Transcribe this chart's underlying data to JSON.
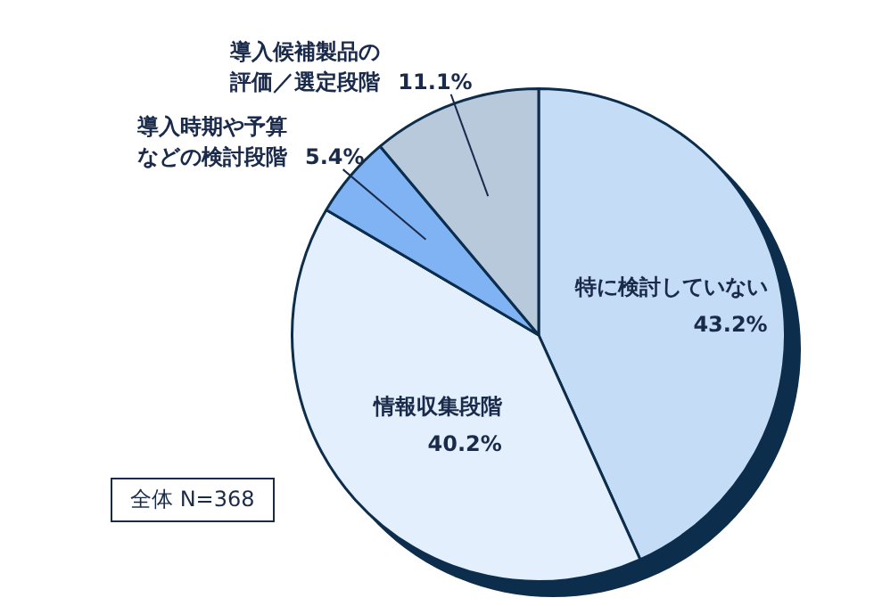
{
  "chart_data": {
    "type": "pie",
    "categories": [
      "特に検討していない",
      "情報収集段階",
      "導入時期や予算などの検討段階",
      "導入候補製品の評価／選定段階"
    ],
    "values": [
      43.2,
      40.2,
      5.4,
      11.1
    ],
    "value_labels": [
      "43.2%",
      "40.2%",
      "5.4%",
      "11.1%"
    ],
    "colors": [
      "#c5dcf7",
      "#e3effc",
      "#7fb3f3",
      "#b7c9db"
    ],
    "annotations": [
      "全体 N=368"
    ],
    "legend": false
  }
}
